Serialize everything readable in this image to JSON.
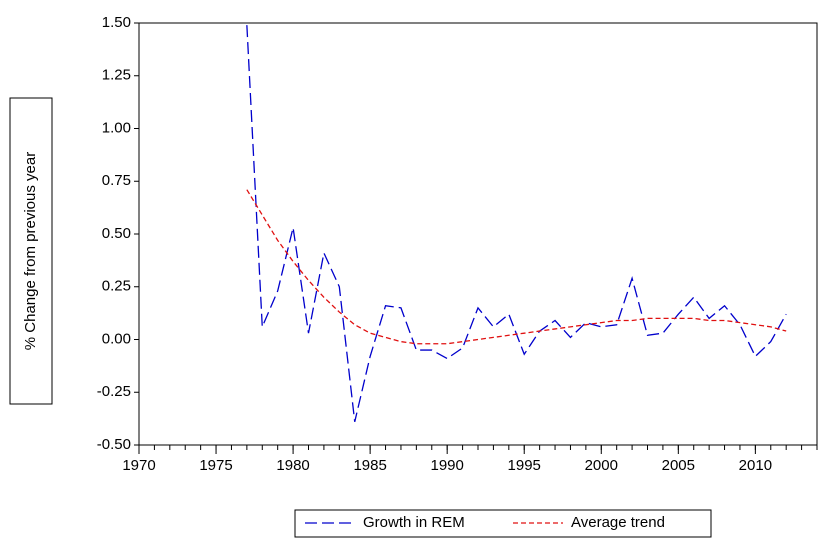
{
  "chart_data": {
    "type": "line",
    "y_label": "% Change from previous year",
    "x": [
      1977,
      1978,
      1979,
      1980,
      1981,
      1982,
      1983,
      1984,
      1985,
      1986,
      1987,
      1988,
      1989,
      1990,
      1991,
      1992,
      1993,
      1994,
      1995,
      1996,
      1997,
      1998,
      1999,
      2000,
      2001,
      2002,
      2003,
      2004,
      2005,
      2006,
      2007,
      2008,
      2009,
      2010,
      2011,
      2012
    ],
    "series": [
      {
        "name": "Growth in REM",
        "color": "#0000cc",
        "dash": "12 5",
        "values": [
          1.49,
          0.06,
          0.23,
          0.53,
          0.03,
          0.41,
          0.25,
          -0.39,
          -0.08,
          0.16,
          0.15,
          -0.05,
          -0.05,
          -0.09,
          -0.04,
          0.15,
          0.06,
          0.12,
          -0.07,
          0.04,
          0.09,
          0.01,
          0.08,
          0.06,
          0.07,
          0.29,
          0.02,
          0.03,
          0.12,
          0.2,
          0.1,
          0.16,
          0.07,
          -0.08,
          -0.01,
          0.12
        ]
      },
      {
        "name": "Average trend",
        "color": "#e01010",
        "dash": "5 3",
        "values": [
          0.71,
          0.59,
          0.47,
          0.37,
          0.28,
          0.2,
          0.13,
          0.07,
          0.03,
          0.01,
          -0.01,
          -0.02,
          -0.02,
          -0.02,
          -0.01,
          0.0,
          0.01,
          0.02,
          0.03,
          0.04,
          0.05,
          0.06,
          0.07,
          0.08,
          0.09,
          0.09,
          0.1,
          0.1,
          0.1,
          0.1,
          0.09,
          0.09,
          0.08,
          0.07,
          0.06,
          0.04
        ]
      }
    ],
    "xlim": [
      1970,
      2014
    ],
    "xticks": [
      1970,
      1975,
      1980,
      1985,
      1990,
      1995,
      2000,
      2005,
      2010
    ],
    "x_minor_ticks": [
      1970,
      1971,
      1972,
      1973,
      1974,
      1975,
      1976,
      1977,
      1978,
      1979,
      1980,
      1981,
      1982,
      1983,
      1984,
      1985,
      1986,
      1987,
      1988,
      1989,
      1990,
      1991,
      1992,
      1993,
      1994,
      1995,
      1996,
      1997,
      1998,
      1999,
      2000,
      2001,
      2002,
      2003,
      2004,
      2005,
      2006,
      2007,
      2008,
      2009,
      2010,
      2011,
      2012,
      2013,
      2014
    ],
    "ylim": [
      -0.5,
      1.5
    ],
    "yticks": [
      {
        "value": -0.5,
        "label": "-0.50"
      },
      {
        "value": -0.25,
        "label": "-0.25"
      },
      {
        "value": 0,
        "label": "0.00"
      },
      {
        "value": 0.25,
        "label": "0.25"
      },
      {
        "value": 0.5,
        "label": "0.50"
      },
      {
        "value": 0.75,
        "label": "0.75"
      },
      {
        "value": 1,
        "label": "1.00"
      },
      {
        "value": 1.25,
        "label": "1.25"
      },
      {
        "value": 1.5,
        "label": "1.50"
      }
    ],
    "legend": "bottom"
  }
}
